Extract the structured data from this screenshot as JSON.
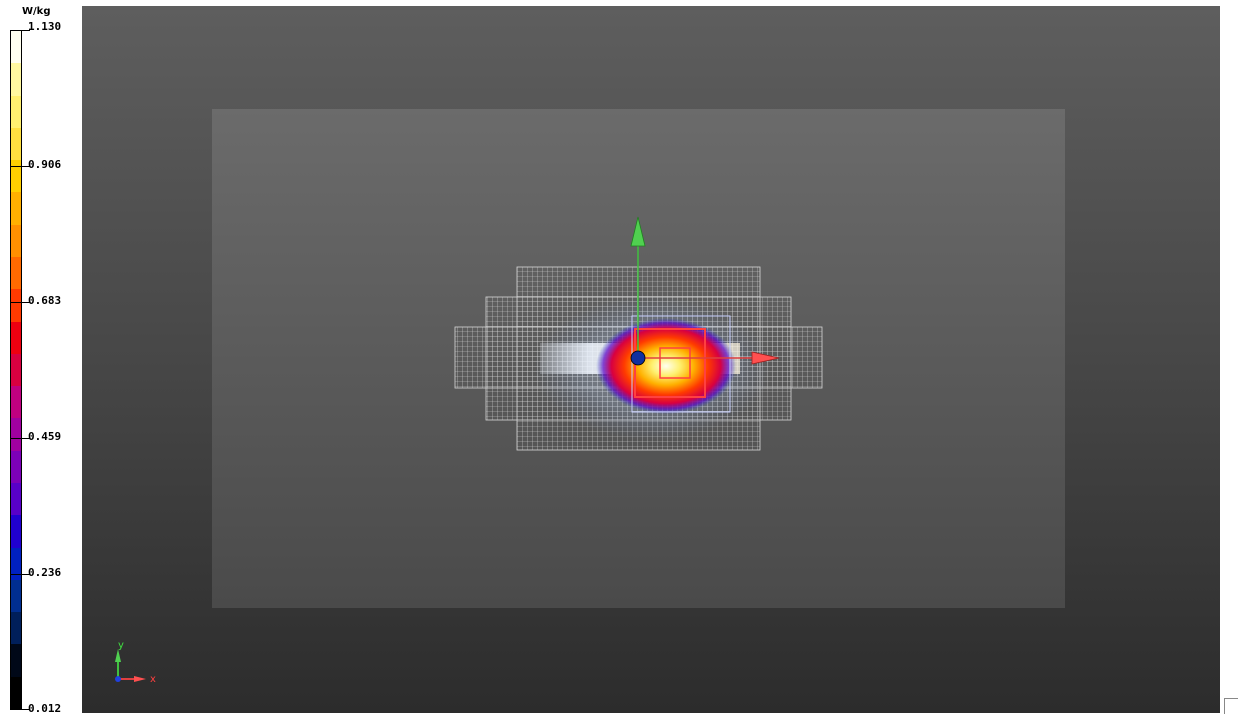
{
  "legend": {
    "unit": "W/kg",
    "ticks": [
      {
        "label": "1.130",
        "pos": 0.0
      },
      {
        "label": "0.906",
        "pos": 0.2
      },
      {
        "label": "0.683",
        "pos": 0.4
      },
      {
        "label": "0.459",
        "pos": 0.6
      },
      {
        "label": "0.236",
        "pos": 0.8
      },
      {
        "label": "0.012",
        "pos": 1.0
      }
    ],
    "colors": [
      "#fffff0",
      "#fff8a0",
      "#fff070",
      "#ffe040",
      "#ffd000",
      "#ffb000",
      "#ff9000",
      "#ff6a00",
      "#ff3a00",
      "#ee0010",
      "#d80040",
      "#c00080",
      "#a000a0",
      "#7c00b8",
      "#5800c8",
      "#2000d0",
      "#0020c0",
      "#002e90",
      "#001f5a",
      "#000818",
      "#000000"
    ]
  },
  "axes_triad": {
    "x_label": "x",
    "y_label": "y"
  },
  "scene": {
    "grid_color": "#d8d8d8",
    "x_axis_color": "#e04040",
    "y_axis_color": "#40c040",
    "origin_color": "#1030a0"
  }
}
